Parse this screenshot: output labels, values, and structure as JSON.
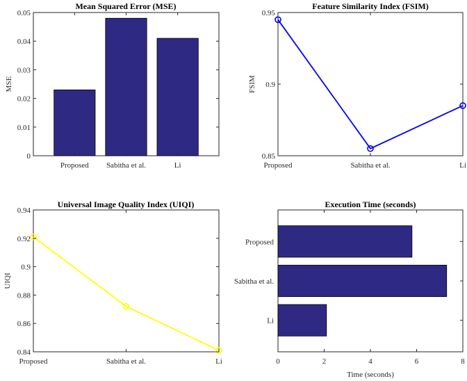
{
  "chart_data": [
    {
      "type": "bar",
      "title": "Mean Squared Error (MSE)",
      "xlabel": "",
      "ylabel": "MSE",
      "categories": [
        "Proposed",
        "Sabitha et al.",
        "Li"
      ],
      "values": [
        0.023,
        0.048,
        0.041
      ],
      "ylim": [
        0,
        0.05
      ],
      "yticks": [
        0,
        0.01,
        0.02,
        0.03,
        0.04,
        0.05
      ],
      "ytick_labels": [
        "0",
        "0.01",
        "0.02",
        "0.03",
        "0.04",
        "0.05"
      ],
      "color": "#2e2a84",
      "grid": false
    },
    {
      "type": "line",
      "title": "Feature Similarity Index (FSIM)",
      "xlabel": "",
      "ylabel": "FSIM",
      "categories": [
        "Proposed",
        "Sabitha et al.",
        "Li"
      ],
      "values": [
        0.945,
        0.855,
        0.885
      ],
      "ylim": [
        0.85,
        0.95
      ],
      "yticks": [
        0.85,
        0.9,
        0.95
      ],
      "ytick_labels": [
        "0.85",
        "0.9",
        "0.95"
      ],
      "color": "#0000ff",
      "marker": "circle",
      "grid": false
    },
    {
      "type": "line",
      "title": "Universal Image Quality Index (UIQI)",
      "xlabel": "",
      "ylabel": "UIQI",
      "categories": [
        "Proposed",
        "Sabitha et al.",
        "Li"
      ],
      "values": [
        0.921,
        0.872,
        0.841
      ],
      "ylim": [
        0.84,
        0.94
      ],
      "yticks": [
        0.84,
        0.86,
        0.88,
        0.9,
        0.92,
        0.94
      ],
      "ytick_labels": [
        "0.84",
        "0.86",
        "0.88",
        "0.9",
        "0.92",
        "0.94"
      ],
      "color": "#ffff00",
      "marker": "circle",
      "grid": false
    },
    {
      "type": "bar",
      "orientation": "horizontal",
      "title": "Execution Time (seconds)",
      "xlabel": "Time (seconds)",
      "ylabel": "",
      "categories": [
        "Proposed",
        "Sabitha et al.",
        "Li"
      ],
      "values": [
        5.8,
        7.3,
        2.1
      ],
      "xlim": [
        0,
        8
      ],
      "xticks": [
        0,
        2,
        4,
        6,
        8
      ],
      "xtick_labels": [
        "0",
        "2",
        "4",
        "6",
        "8"
      ],
      "color": "#2e2a84",
      "grid": false
    }
  ]
}
